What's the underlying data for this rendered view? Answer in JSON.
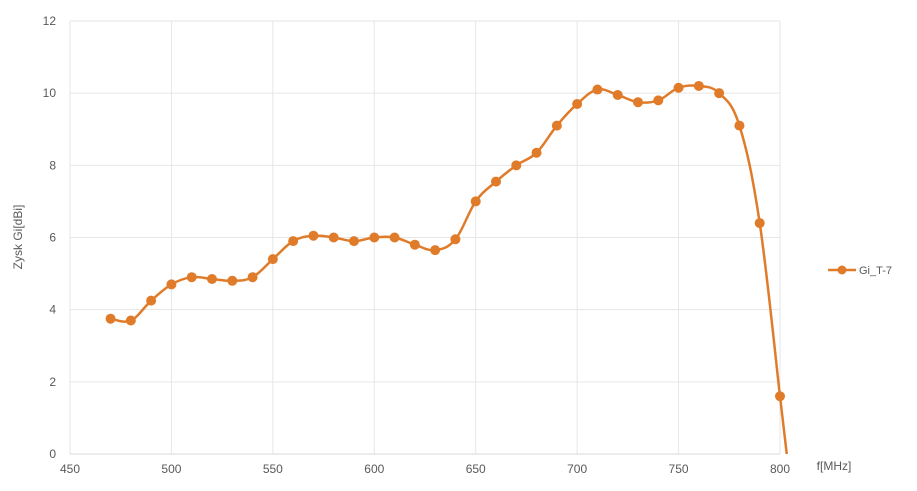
{
  "chart_data": {
    "type": "line",
    "xlabel": "f[MHz]",
    "ylabel": "Zysk Gi[dBi]",
    "xlim": [
      450,
      800
    ],
    "ylim": [
      0,
      12
    ],
    "x_ticks": [
      "450",
      "500",
      "550",
      "600",
      "650",
      "700",
      "750",
      "800"
    ],
    "y_ticks": [
      "0",
      "2",
      "4",
      "6",
      "8",
      "10",
      "12"
    ],
    "grid": true,
    "legend_position": "right",
    "series": [
      {
        "name": "Gi_T-7",
        "color": "#E07B2A",
        "marker": "circle",
        "x": [
          470,
          480,
          490,
          500,
          510,
          520,
          530,
          540,
          550,
          560,
          570,
          580,
          590,
          600,
          610,
          620,
          630,
          640,
          650,
          660,
          670,
          680,
          690,
          700,
          710,
          720,
          730,
          740,
          750,
          760,
          770,
          780,
          790,
          800
        ],
        "y": [
          3.75,
          3.7,
          4.25,
          4.7,
          4.9,
          4.85,
          4.8,
          4.9,
          5.4,
          5.9,
          6.05,
          6.0,
          5.9,
          6.0,
          6.0,
          5.8,
          5.65,
          5.95,
          7.0,
          7.55,
          8.0,
          8.35,
          9.1,
          9.7,
          10.1,
          9.95,
          9.75,
          9.8,
          10.15,
          10.2,
          10.0,
          9.1,
          6.4,
          1.6
        ]
      }
    ]
  }
}
